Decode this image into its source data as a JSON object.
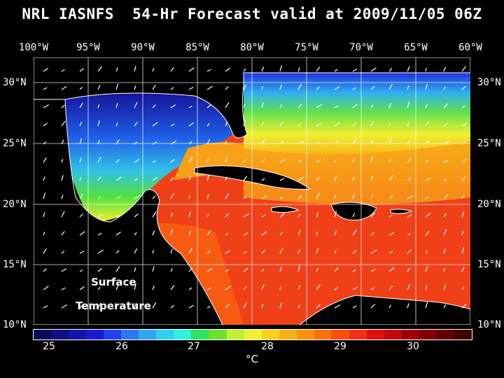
{
  "title": "NRL IASNFS  54-Hr Forecast valid at 2009/11/05 06Z",
  "longitude_labels": [
    "100°W",
    "95°W",
    "90°W",
    "85°W",
    "80°W",
    "75°W",
    "70°W",
    "65°W",
    "60°W"
  ],
  "latitude_labels": [
    "30°N",
    "25°N",
    "20°N",
    "15°N",
    "10°N"
  ],
  "overlay": {
    "line1": "Surface",
    "line2": "Temperature"
  },
  "colorbar": {
    "ticks": [
      "25",
      "26",
      "27",
      "28",
      "29",
      "30"
    ],
    "unit": "°C",
    "colors": [
      "#0b0b5a",
      "#101080",
      "#1414a8",
      "#1a1ad0",
      "#2040f0",
      "#2c78f0",
      "#30a8f0",
      "#30d0f0",
      "#30f0e0",
      "#30e060",
      "#70e030",
      "#c0f030",
      "#f0f030",
      "#f8d020",
      "#f8b018",
      "#f89010",
      "#f87010",
      "#f85010",
      "#f03018",
      "#e01010",
      "#c00810",
      "#a00008",
      "#800000",
      "#600000",
      "#400000"
    ]
  },
  "colors": {
    "background": "#000000",
    "land": "#000000",
    "coast": "#ffffff",
    "grid": "#ffffff",
    "gulf_cold": "#1a1ad0",
    "caribbean_warm": "#f03018"
  }
}
